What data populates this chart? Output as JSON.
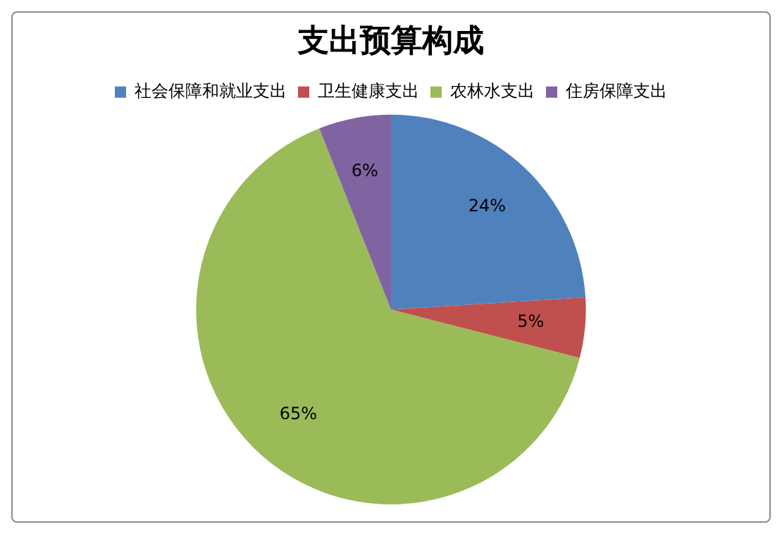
{
  "chart_data": {
    "type": "pie",
    "title": "支出预算构成",
    "categories": [
      "社会保障和就业支出",
      "卫生健康支出",
      "农林水支出",
      "住房保障支出"
    ],
    "values": [
      24,
      5,
      65,
      6
    ],
    "colors": [
      "#4f81bd",
      "#c0504d",
      "#9bbb59",
      "#8064a2"
    ],
    "value_labels": [
      "24%",
      "5%",
      "65%",
      "6%"
    ],
    "legend": "top"
  }
}
